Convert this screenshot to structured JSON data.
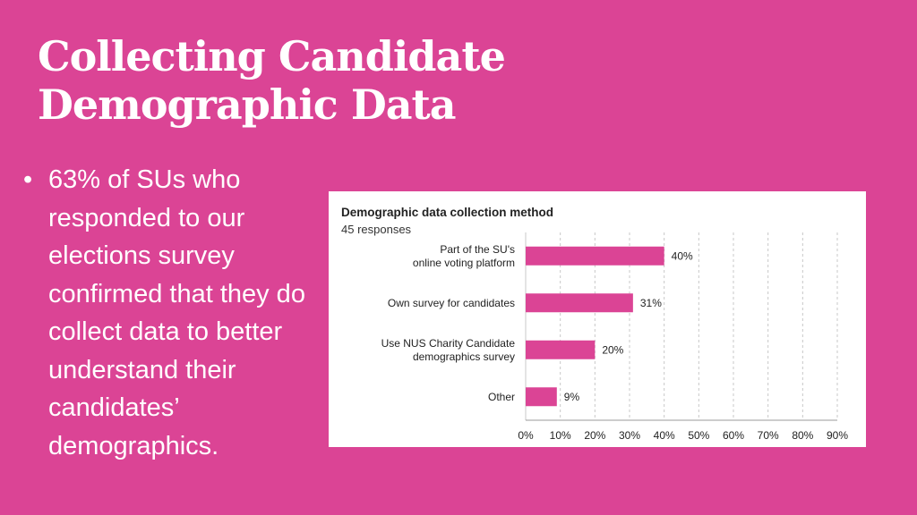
{
  "slide": {
    "title": "Collecting Candidate Demographic Data",
    "bullet_text": "63% of SUs who responded to our elections survey confirmed that they do collect data to better understand their candidates’ demographics.",
    "background_color": "#db4495"
  },
  "chart_data": {
    "type": "bar",
    "orientation": "horizontal",
    "title": "Demographic data collection method",
    "subtitle": "45 responses",
    "categories": [
      [
        "Part of the SU's",
        "online voting platform"
      ],
      [
        "Own survey for candidates"
      ],
      [
        "Use NUS Charity Candidate",
        "demographics survey"
      ],
      [
        "Other"
      ]
    ],
    "values": [
      40,
      31,
      20,
      9
    ],
    "value_labels": [
      "40%",
      "31%",
      "20%",
      "9%"
    ],
    "xlim": [
      0,
      90
    ],
    "xticks": [
      0,
      10,
      20,
      30,
      40,
      50,
      60,
      70,
      80,
      90
    ],
    "xtick_labels": [
      "0%",
      "10%",
      "20%",
      "30%",
      "40%",
      "50%",
      "60%",
      "70%",
      "80%",
      "90%"
    ],
    "grid": true,
    "bar_color": "#db4495"
  }
}
